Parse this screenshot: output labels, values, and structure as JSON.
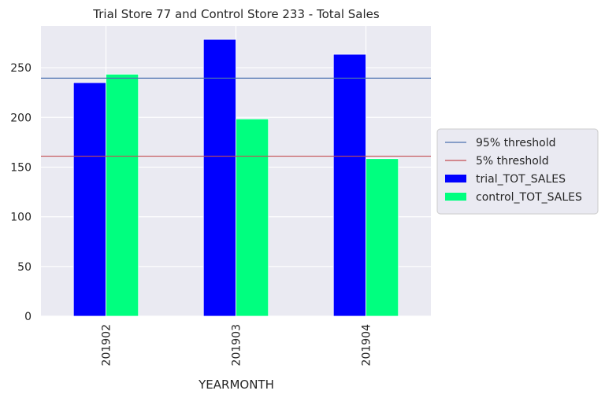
{
  "chart_data": {
    "type": "bar",
    "title": "Trial Store 77 and Control Store 233 - Total Sales",
    "xlabel": "YEARMONTH",
    "ylabel": "",
    "categories": [
      "201902",
      "201903",
      "201904"
    ],
    "series": [
      {
        "name": "trial_TOT_SALES",
        "values": [
          235,
          278.5,
          263.5
        ],
        "color": "#0000ff"
      },
      {
        "name": "control_TOT_SALES",
        "values": [
          243.5,
          198.5,
          158.5
        ],
        "color": "#00ff7f"
      }
    ],
    "thresholds": [
      {
        "name": "95% threshold",
        "value": 239.5,
        "color": "#4c72b0"
      },
      {
        "name": "5% threshold",
        "value": 161,
        "color": "#c44e52"
      }
    ],
    "ylim": [
      0,
      292
    ],
    "yticks": [
      0,
      50,
      100,
      150,
      200,
      250
    ],
    "grid": true,
    "legend_position": "right"
  }
}
